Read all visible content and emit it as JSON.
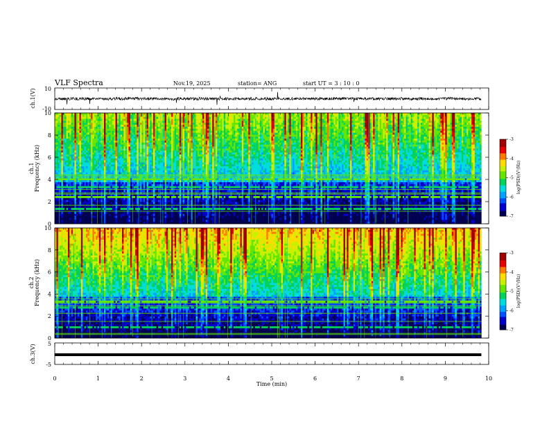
{
  "header": {
    "title": "VLF Spectra",
    "date": "Nov.19, 2025",
    "station": "station= ANG",
    "start": "start  UT =   3  : 10 : 0"
  },
  "chart_data": [
    {
      "type": "line",
      "name": "ch1-waveform",
      "ylabel": "ch.1(V)",
      "ylim": [
        -10,
        10
      ],
      "yticks": [
        "10",
        "-10"
      ],
      "xlim": [
        0,
        10
      ]
    },
    {
      "type": "heatmap",
      "name": "ch1-spectrogram",
      "ylabel_channel": "ch.1",
      "ylabel": "Frequency (kHz)",
      "ylim": [
        0,
        10
      ],
      "yticks": [
        "0",
        "2",
        "4",
        "6",
        "8",
        "10"
      ],
      "colorbar": {
        "label": "log(PSD)(V²/Hz)",
        "range": [
          -7,
          -3
        ],
        "ticks": [
          "-3",
          "-4",
          "-5",
          "-6",
          "-7"
        ]
      }
    },
    {
      "type": "heatmap",
      "name": "ch2-spectrogram",
      "ylabel_channel": "ch.2",
      "ylabel": "Frequency (kHz)",
      "ylim": [
        0,
        10
      ],
      "yticks": [
        "0",
        "2",
        "4",
        "6",
        "8",
        "10"
      ],
      "colorbar": {
        "label": "log(PSD)(V²/Hz)",
        "range": [
          -7,
          -3
        ],
        "ticks": [
          "-3",
          "-4",
          "-5",
          "-6",
          "-7"
        ]
      }
    },
    {
      "type": "line",
      "name": "ch3-waveform",
      "ylabel": "ch.3(V)",
      "ylim": [
        -5,
        5
      ],
      "yticks": [
        "5",
        "-5"
      ],
      "value": -0.5,
      "xlabel": "Time (min)",
      "xlim": [
        0,
        10
      ],
      "xticks": [
        "0",
        "1",
        "2",
        "3",
        "4",
        "5",
        "6",
        "7",
        "8",
        "9",
        "10"
      ],
      "data_end_min": 9.83
    }
  ],
  "colors": {
    "palette": [
      "#000050",
      "#0000c8",
      "#0050ff",
      "#00a0ff",
      "#00dcdc",
      "#00d25a",
      "#64e600",
      "#c8f000",
      "#ffdc00",
      "#ff7800",
      "#e60000",
      "#a00000"
    ]
  }
}
